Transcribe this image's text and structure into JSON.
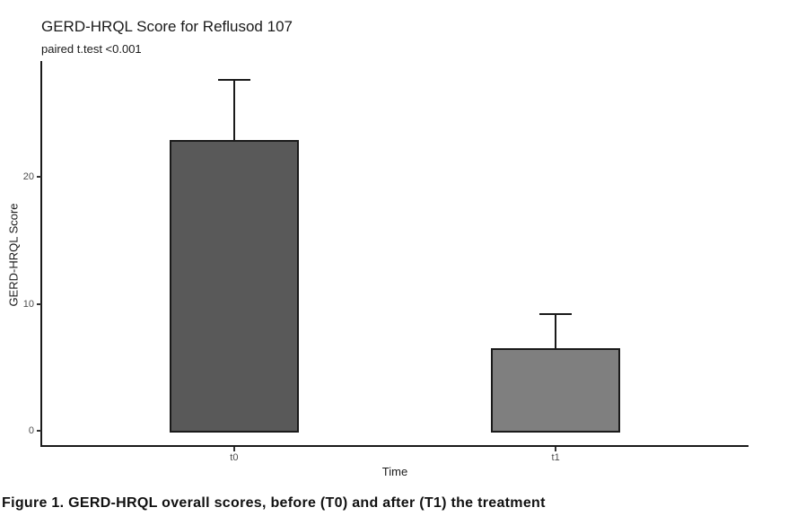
{
  "chart": {
    "title": "GERD-HRQL Score for Reflusod 107",
    "subtitle": "paired t.test <0.001",
    "xlabel": "Time",
    "ylabel": "GERD-HRQL Score"
  },
  "caption": "Figure 1. GERD-HRQL overall scores, before (T0) and after (T1) the treatment",
  "chart_data": {
    "type": "bar",
    "title": "GERD-HRQL Score for Reflusod 107",
    "subtitle": "paired t.test <0.001",
    "xlabel": "Time",
    "ylabel": "GERD-HRQL Score",
    "categories": [
      "t0",
      "t1"
    ],
    "values": [
      22.9,
      6.5
    ],
    "error_upper": [
      27.6,
      9.2
    ],
    "y_ticks": [
      0,
      10,
      20
    ],
    "ylim": [
      0,
      29
    ],
    "grid": false,
    "legend": false,
    "bar_colors": [
      "#595959",
      "#7f7f7f"
    ],
    "bar_border_color": "#1a1a1a",
    "axis_line_color": "#1a1a1a",
    "axis_text_color": "#4d4d4d"
  }
}
